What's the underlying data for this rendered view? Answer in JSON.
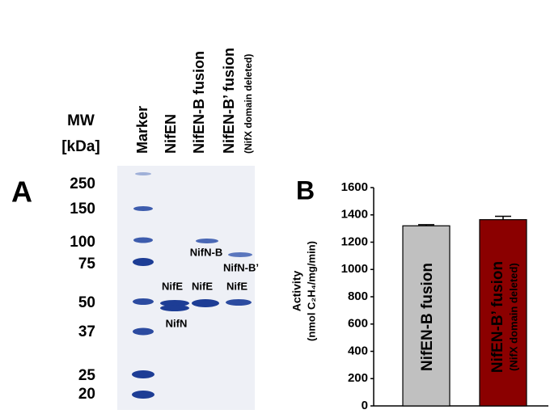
{
  "gel": {
    "panel_label": "A",
    "mw_title": "MW",
    "mw_unit": "[kDa]",
    "lanes": [
      "Marker",
      "NifEN",
      "NifEN-B fusion",
      "NifEN-B’ fusion"
    ],
    "lane_note": "(NifX domain deleted)",
    "mw_labels": [
      250,
      150,
      100,
      75,
      50,
      37,
      25,
      20
    ],
    "band_labels": [
      "NifE",
      "NifN",
      "NifE",
      "NifN-B",
      "NifE",
      "NifN-B’"
    ]
  },
  "chart_data": {
    "type": "bar",
    "panel_label": "B",
    "y_label": "Activity",
    "y_unit": "(nmol C₂H₄/mg/min)",
    "categories": [
      "NifEN-B fusion",
      "NifEN-B’ fusion"
    ],
    "category_notes": [
      null,
      "(NifX domain deleted)"
    ],
    "values": [
      1320,
      1365
    ],
    "errors": [
      8,
      25
    ],
    "colors": [
      "#c0c0c0",
      "#8b0000"
    ],
    "label_colors": [
      "#000000",
      "#ffffff"
    ],
    "ylim": [
      0,
      1600
    ],
    "yticks": [
      0,
      200,
      400,
      600,
      800,
      1000,
      1200,
      1400,
      1600
    ]
  }
}
